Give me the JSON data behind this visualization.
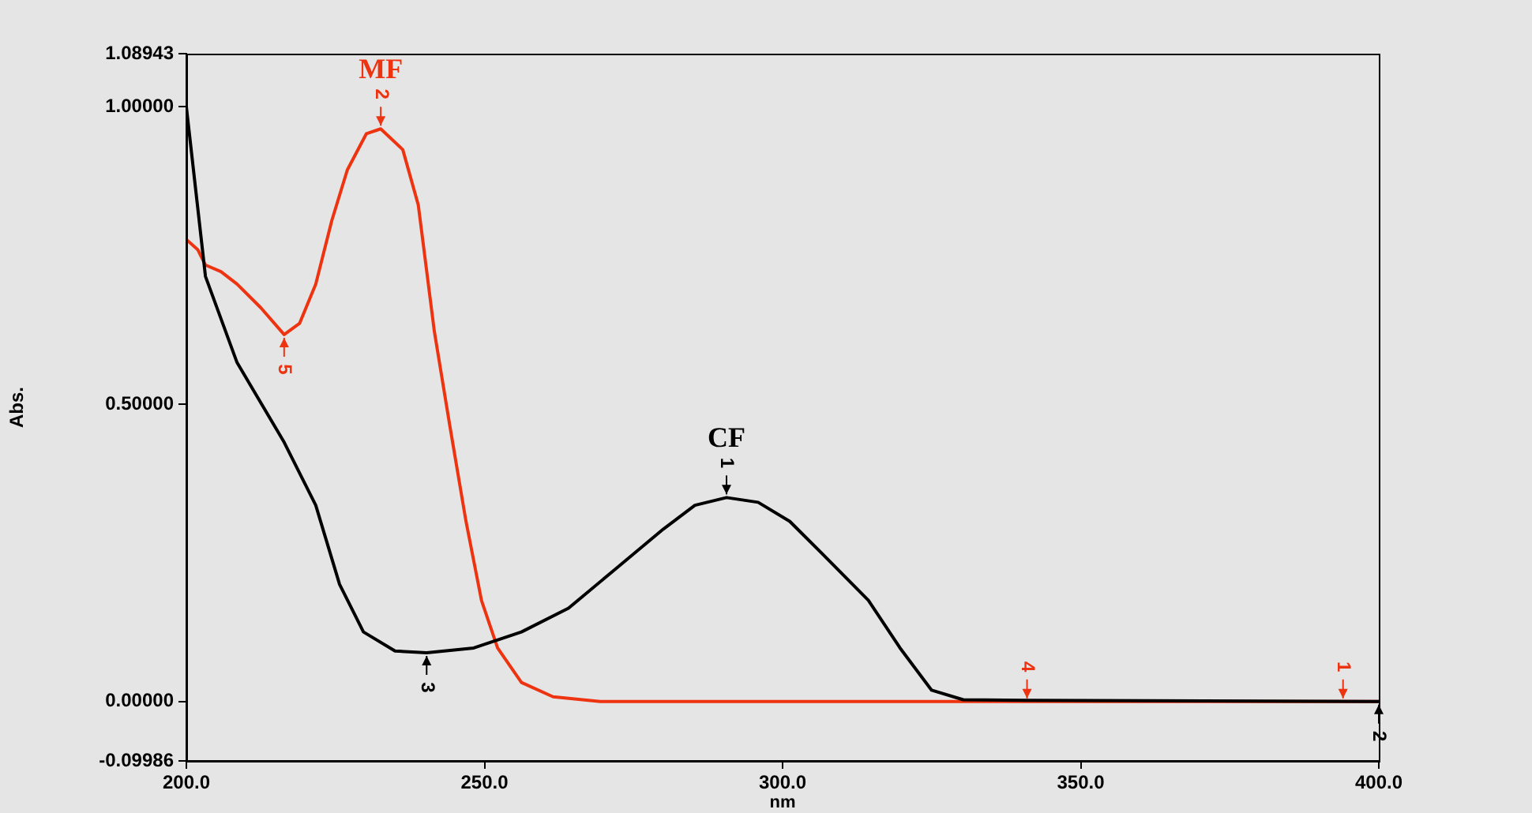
{
  "chart_data": {
    "type": "line",
    "xlabel": "nm",
    "ylabel": "Abs.",
    "xlim": [
      200,
      400
    ],
    "ylim": [
      -0.09986,
      1.08943
    ],
    "xticks": [
      {
        "value": 200,
        "label": "200.0"
      },
      {
        "value": 250,
        "label": "250.0"
      },
      {
        "value": 300,
        "label": "300.0"
      },
      {
        "value": 350,
        "label": "350.0"
      },
      {
        "value": 400,
        "label": "400.0"
      }
    ],
    "yticks": [
      {
        "value": -0.09986,
        "label": "-0.09986"
      },
      {
        "value": 0,
        "label": "0.00000"
      },
      {
        "value": 0.5,
        "label": "0.50000"
      },
      {
        "value": 1,
        "label": "1.00000"
      },
      {
        "value": 1.08943,
        "label": "1.08943"
      }
    ],
    "grid": false,
    "legend": false,
    "marker": "none",
    "line_style": "solid",
    "series": [
      {
        "color": "#000000",
        "x": [
          200,
          203.2,
          208.5,
          216.4,
          221.7,
          225.7,
          229.7,
          235,
          240.3,
          248.2,
          256.2,
          264.1,
          272,
          280,
          285.3,
          290.6,
          295.9,
          301.2,
          306.5,
          314.4,
          319.7,
          325,
          330.3,
          341,
          400
        ],
        "values": [
          1.0,
          0.715,
          0.57,
          0.436,
          0.33,
          0.197,
          0.117,
          0.085,
          0.082,
          0.09,
          0.117,
          0.157,
          0.223,
          0.29,
          0.33,
          0.343,
          0.335,
          0.303,
          0.25,
          0.17,
          0.09,
          0.019,
          0.003,
          0.002,
          0
        ]
      },
      {
        "color": "#ee3311",
        "x": [
          200,
          201.9,
          203.2,
          205.8,
          208.5,
          212.5,
          216.4,
          219,
          221.7,
          224.4,
          227,
          230.2,
          232.6,
          236.3,
          238.9,
          241.6,
          244.2,
          246.9,
          249.5,
          252.2,
          256.2,
          261.5,
          269.4,
          341,
          394,
          400
        ],
        "values": [
          0.777,
          0.76,
          0.734,
          0.723,
          0.702,
          0.662,
          0.617,
          0.636,
          0.702,
          0.809,
          0.894,
          0.955,
          0.963,
          0.928,
          0.835,
          0.622,
          0.463,
          0.303,
          0.17,
          0.09,
          0.032,
          0.008,
          0,
          0,
          0,
          0
        ]
      }
    ],
    "annotations": [
      {
        "text": "MF",
        "x": 232.6,
        "y": 0.963
      },
      {
        "text": "CF",
        "x": 290.6,
        "y": 0.343
      },
      {
        "text": "2",
        "x": 232.6,
        "y": 0.963
      },
      {
        "text": "5",
        "x": 216.4,
        "y": 0.617
      },
      {
        "text": "4",
        "x": 341,
        "y": 0
      },
      {
        "text": "1",
        "x": 394,
        "y": 0
      },
      {
        "text": "1",
        "x": 290.6,
        "y": 0.343
      },
      {
        "text": "3",
        "x": 240.3,
        "y": 0.082
      },
      {
        "text": "2",
        "x": 400,
        "y": 0
      }
    ]
  }
}
